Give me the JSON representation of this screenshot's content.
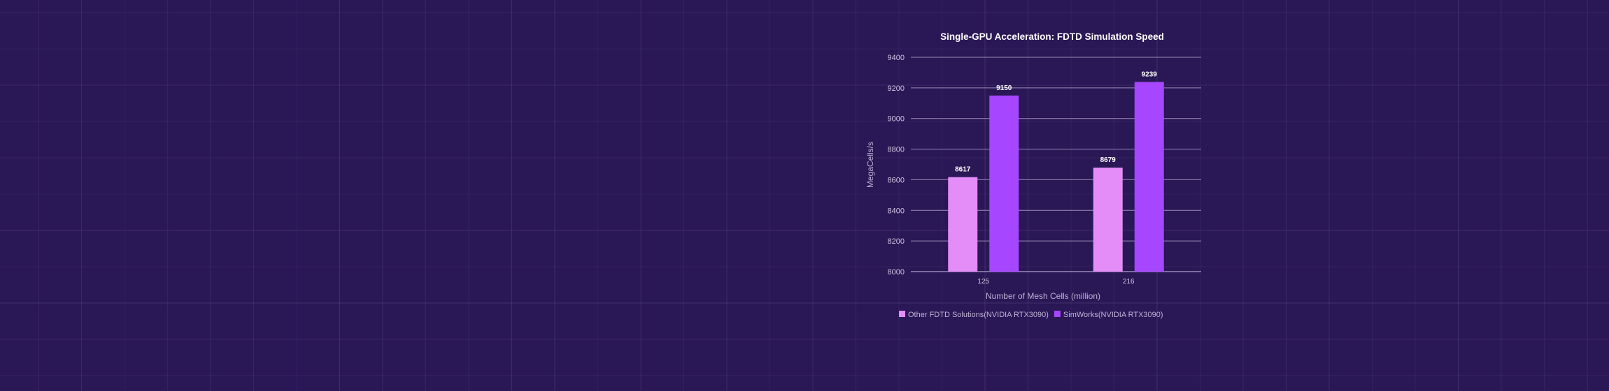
{
  "colors": {
    "background": "#2a1755",
    "gridline": "#bdb3d8",
    "series_1": "#e48cf7",
    "series_2": "#a646ff"
  },
  "chart_data": {
    "type": "bar",
    "title": "Single-GPU Acceleration: FDTD Simulation Speed",
    "xlabel": "Number of Mesh Cells (million)",
    "ylabel": "MegaCells/s",
    "categories": [
      "125",
      "216"
    ],
    "series": [
      {
        "name": "Other FDTD Solutions(NVIDIA RTX3090)",
        "values": [
          8617,
          8679
        ]
      },
      {
        "name": "SimWorks(NVIDIA RTX3090)",
        "values": [
          9150,
          9239
        ]
      }
    ],
    "ylim": [
      8000,
      9400
    ],
    "yticks": [
      8000,
      8200,
      8400,
      8600,
      8800,
      9000,
      9200,
      9400
    ],
    "grid": true,
    "legend": "bottom",
    "data_labels": true
  }
}
